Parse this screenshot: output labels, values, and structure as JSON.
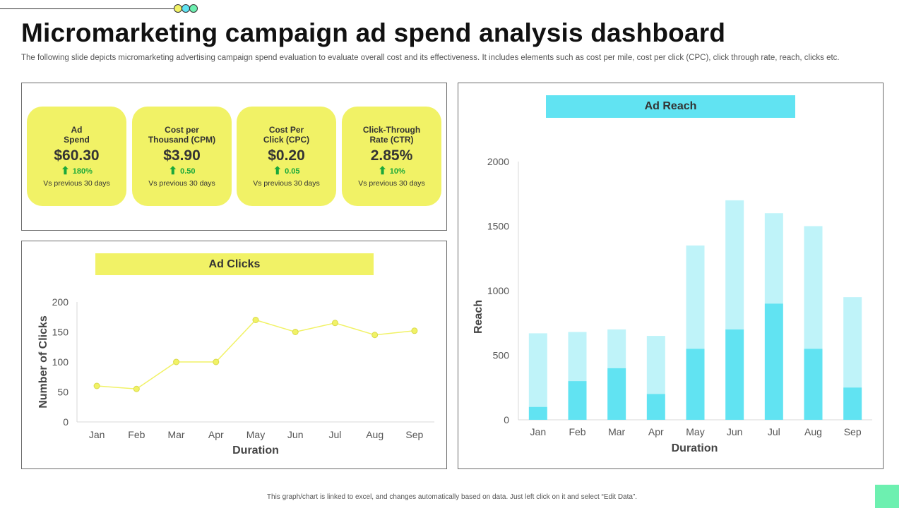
{
  "header": {
    "title": "Micromarketing campaign ad spend analysis dashboard",
    "subtitle": "The following slide depicts micromarketing advertising campaign spend evaluation to evaluate overall cost and its effectiveness. It includes elements such as cost per mile, cost per click (CPC), click through rate, reach, clicks etc."
  },
  "colors": {
    "yellow": "#f1f266",
    "cyan": "#61e3f2",
    "cyan_light": "#bff3f9",
    "green": "#1aa83a",
    "mint": "#6df0b0",
    "dot_yellow": "#f1f266",
    "dot_cyan": "#61e3f2",
    "dot_mint": "#6df0b0"
  },
  "kpis": [
    {
      "label": "Ad\nSpend",
      "value": "$60.30",
      "change": "180%",
      "direction": "up",
      "compare": "Vs previous 30 days"
    },
    {
      "label": "Cost per\nThousand  (CPM)",
      "value": "$3.90",
      "change": "0.50",
      "direction": "up",
      "compare": "Vs previous 30 days"
    },
    {
      "label": "Cost Per\nClick (CPC)",
      "value": "$0.20",
      "change": "0.05",
      "direction": "up",
      "compare": "Vs previous 30 days"
    },
    {
      "label": "Click-Through\nRate (CTR)",
      "value": "2.85%",
      "change": "10%",
      "direction": "up",
      "compare": "Vs previous 30 days"
    }
  ],
  "ad_clicks": {
    "header": "Ad Clicks"
  },
  "ad_reach": {
    "header": "Ad Reach"
  },
  "chart_data": [
    {
      "type": "line",
      "title": "Ad Clicks",
      "xlabel": "Duration",
      "ylabel": "Number of Clicks",
      "categories": [
        "Jan",
        "Feb",
        "Mar",
        "Apr",
        "May",
        "Jun",
        "Jul",
        "Aug",
        "Sep"
      ],
      "series": [
        {
          "values": [
            60,
            55,
            100,
            100,
            170,
            150,
            165,
            145,
            152
          ]
        }
      ],
      "ylim": [
        0,
        200
      ],
      "yticks": [
        0,
        50,
        100,
        150,
        200
      ],
      "grid": false,
      "legend": "none"
    },
    {
      "type": "bar",
      "stacked": true,
      "title": "Ad Reach",
      "xlabel": "Duration",
      "ylabel": "Reach",
      "categories": [
        "Jan",
        "Feb",
        "Mar",
        "Apr",
        "May",
        "Jun",
        "Jul",
        "Aug",
        "Sep"
      ],
      "series": [
        {
          "values": [
            100,
            300,
            400,
            200,
            550,
            700,
            900,
            550,
            250
          ]
        },
        {
          "values": [
            570,
            380,
            300,
            450,
            800,
            1000,
            700,
            950,
            700
          ]
        }
      ],
      "ylim": [
        0,
        2000
      ],
      "yticks": [
        0,
        500,
        1000,
        1500,
        2000
      ],
      "grid": false,
      "legend": "none"
    }
  ],
  "footer": {
    "note": "This graph/chart is linked to excel, and changes automatically based on data. Just left click on it and select “Edit Data”."
  }
}
